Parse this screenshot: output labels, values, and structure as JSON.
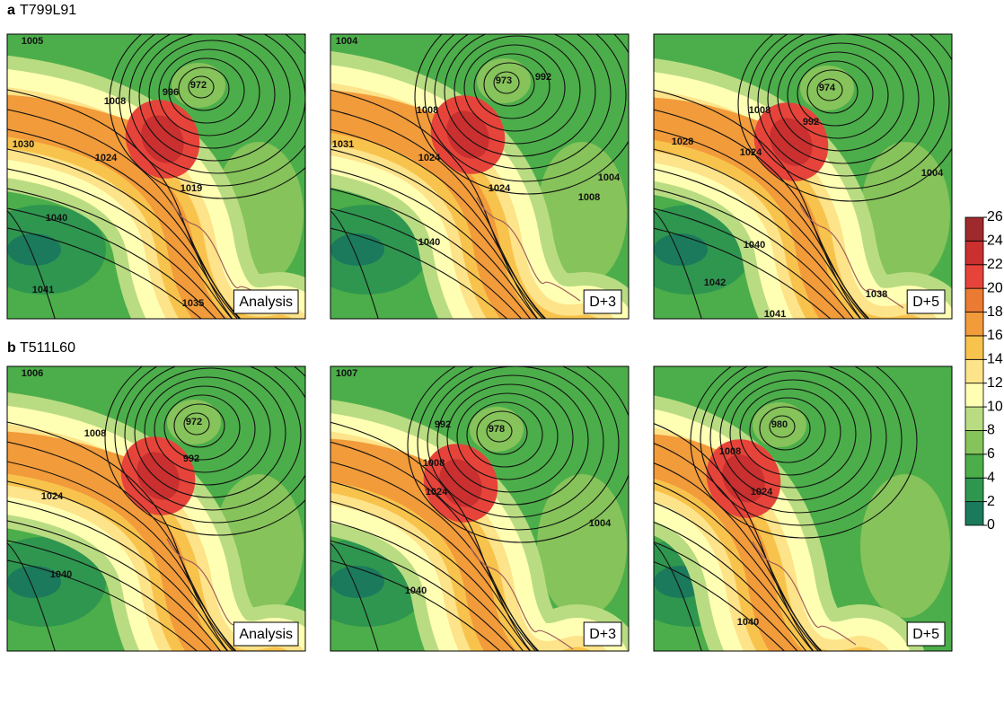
{
  "rows": [
    {
      "letter": "a",
      "title": "T799L91",
      "panels": [
        {
          "label": "Analysis",
          "contour_labels": [
            1005,
            972,
            1008,
            996,
            1030,
            1024,
            1019,
            1040,
            1041,
            1035
          ]
        },
        {
          "label": "D+3",
          "contour_labels": [
            1004,
            973,
            992,
            1008,
            1031,
            1024,
            1024,
            1004,
            1008,
            1040
          ]
        },
        {
          "label": "D+5",
          "contour_labels": [
            974,
            1008,
            992,
            1028,
            1024,
            1004,
            1040,
            1042,
            1041,
            1038
          ]
        }
      ]
    },
    {
      "letter": "b",
      "title": "T511L60",
      "panels": [
        {
          "label": "Analysis",
          "contour_labels": [
            1006,
            972,
            1008,
            992,
            1024,
            1040
          ]
        },
        {
          "label": "D+3",
          "contour_labels": [
            1007,
            992,
            978,
            1008,
            1024,
            1004,
            1040
          ]
        },
        {
          "label": "D+5",
          "contour_labels": [
            980,
            1008,
            1024,
            1040
          ]
        }
      ]
    }
  ],
  "colorbar": {
    "ticks": [
      0,
      2,
      4,
      6,
      8,
      10,
      12,
      14,
      16,
      18,
      20,
      22,
      24,
      26
    ],
    "colors": [
      "#1b7a5c",
      "#2f9650",
      "#4cae4a",
      "#86c35a",
      "#b9dc82",
      "#ffffb4",
      "#fde38a",
      "#f8c34c",
      "#f29b3a",
      "#eb7a33",
      "#e6443a",
      "#c9302f",
      "#9f2a2d"
    ]
  }
}
